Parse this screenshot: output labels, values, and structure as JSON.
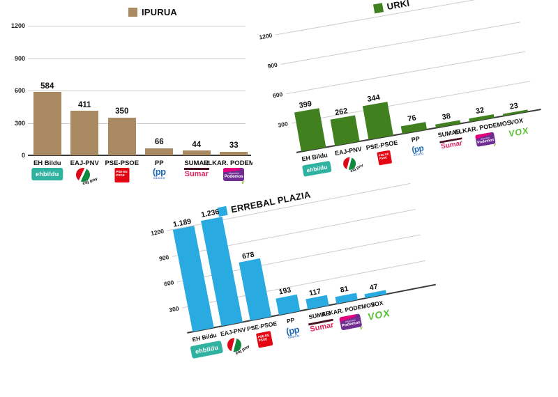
{
  "page": {
    "background": "#ffffff"
  },
  "chart_data": [
    {
      "type": "bar",
      "title": "IPURUA",
      "bar_color": "#A98A63",
      "categories": [
        "EH Bildu",
        "EAJ-PNV",
        "PSE-PSOE",
        "PP",
        "SUMAR",
        "ELKAR. PODEMOS"
      ],
      "values": [
        584,
        411,
        350,
        66,
        44,
        33
      ],
      "value_labels": [
        "584",
        "411",
        "350",
        "66",
        "44",
        "33"
      ],
      "logos": [
        "ehbildu",
        "eajpnv",
        "psepsoe",
        "pp",
        "sumar",
        "podemos"
      ],
      "yticks": [
        0,
        300,
        600,
        900,
        1200
      ],
      "ylim": [
        0,
        1300
      ],
      "xlabel": "",
      "ylabel": "",
      "grid": true,
      "legend_position": "top",
      "rotation_deg": 0
    },
    {
      "type": "bar",
      "title": "URKI",
      "bar_color": "#41801E",
      "categories": [
        "EH Bildu",
        "EAJ-PNV",
        "PSE-PSOE",
        "PP",
        "SUMAR",
        "ELKAR. PODEMOS",
        "VOX"
      ],
      "values": [
        399,
        262,
        344,
        76,
        38,
        32,
        23
      ],
      "value_labels": [
        "399",
        "262",
        "344",
        "76",
        "38",
        "32",
        "23"
      ],
      "logos": [
        "ehbildu",
        "eajpnv",
        "psepsoe",
        "pp",
        "sumar",
        "podemos",
        "vox"
      ],
      "yticks": [
        300,
        600,
        900,
        1200
      ],
      "ylim": [
        0,
        1300
      ],
      "xlabel": "",
      "ylabel": "",
      "grid": true,
      "legend_position": "top",
      "rotation_deg": -10
    },
    {
      "type": "bar",
      "title": "ERREBAL PLAZIA",
      "bar_color": "#29ABE2",
      "categories": [
        "EH Bildu",
        "EAJ-PNV",
        "PSE-PSOE",
        "PP",
        "SUMAR",
        "ELKAR. PODEMOS",
        "VOX"
      ],
      "values": [
        1189,
        1236,
        678,
        193,
        117,
        81,
        47
      ],
      "value_labels": [
        "1.189",
        "1.236",
        "678",
        "193",
        "117",
        "81",
        "47"
      ],
      "logos": [
        "ehbildu",
        "eajpnv",
        "psepsoe",
        "pp",
        "sumar",
        "podemos",
        "vox"
      ],
      "yticks": [
        300,
        600,
        900,
        1200
      ],
      "ylim": [
        0,
        1300
      ],
      "xlabel": "",
      "ylabel": "",
      "grid": true,
      "legend_position": "top",
      "rotation_deg": -11
    }
  ],
  "titles": {
    "chart1": "IPURUA",
    "chart2": "URKI",
    "chart3": "ERREBAL PLAZIA"
  },
  "party_logos": {
    "ehbildu": "ehbildu",
    "eajpnv": "eaj pnv",
    "pse_line1": "PSE-EE",
    "pse_line2": "PSOE",
    "pp": "pp",
    "pp_sub": "VASCO",
    "sumar": "Sumar",
    "podemos_top": "elkarrekin",
    "podemos": "Podemos",
    "podemos_check": "V",
    "vox": "VOX"
  },
  "colors": {
    "ipurua_bar": "#A98A63",
    "urki_bar": "#41801E",
    "errebal_bar": "#29ABE2",
    "grid": "#CCCCCC",
    "axis": "#3A3A3A",
    "text": "#111111",
    "ehbildu_teal": "#2FB3A0",
    "pnv_red": "#DC0817",
    "pnv_green": "#0E8A3E",
    "psoe_red": "#E30613",
    "pp_blue": "#1E69B4",
    "sumar_pink": "#E0245E",
    "sumar_bar_dark": "#471323",
    "podemos_purple": "#6F2C91",
    "podemos_pink": "#E5007D",
    "podemos_green": "#78BE20",
    "vox_green": "#5AC035"
  }
}
